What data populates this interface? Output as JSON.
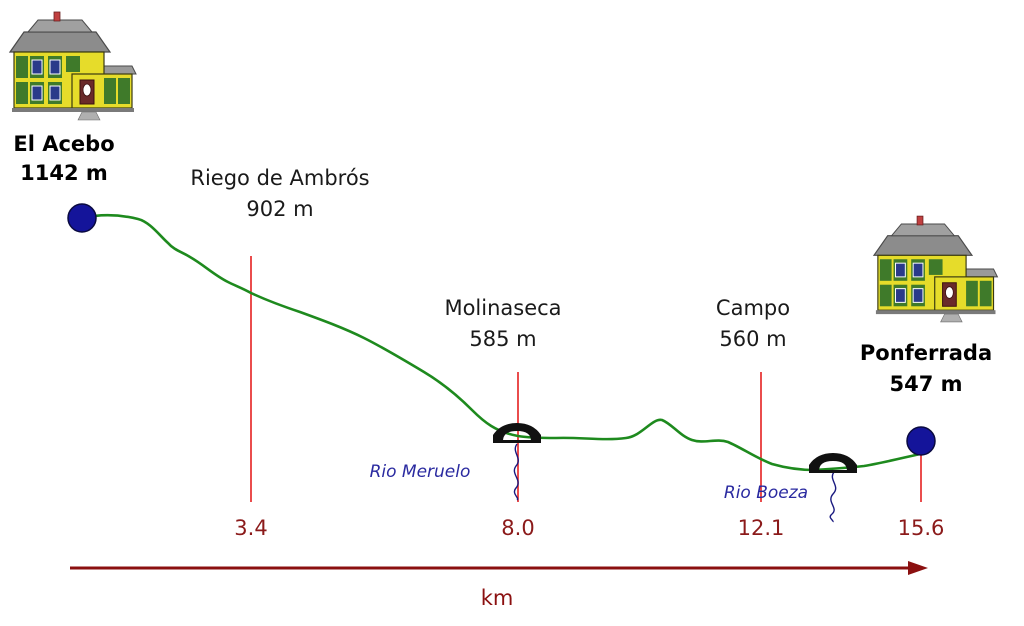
{
  "colors": {
    "profile_line": "#1e8a1e",
    "marker_line": "#e52020",
    "km_text": "#8b1a1a",
    "axis_arrow": "#8b1010",
    "river_text": "#2a2aa0",
    "river_line": "#1a1a80",
    "endpoint_fill": "#14149a"
  },
  "icons": {
    "house": "house-icon",
    "bridge": "bridge-icon",
    "river": "river-icon"
  },
  "start": {
    "name": "El Acebo",
    "elevation": "1142 m"
  },
  "end": {
    "name": "Ponferrada",
    "elevation": "547 m"
  },
  "waypoints": [
    {
      "name": "Riego de Ambrós",
      "elevation": "902 m",
      "km": "3.4"
    },
    {
      "name": "Molinaseca",
      "elevation": "585 m",
      "km": "8.0"
    },
    {
      "name": "Campo",
      "elevation": "560 m",
      "km": "12.1"
    }
  ],
  "end_km": "15.6",
  "rivers": [
    {
      "name": "Rio Meruelo"
    },
    {
      "name": "Rio Boeza"
    }
  ],
  "axis": {
    "unit": "km"
  }
}
